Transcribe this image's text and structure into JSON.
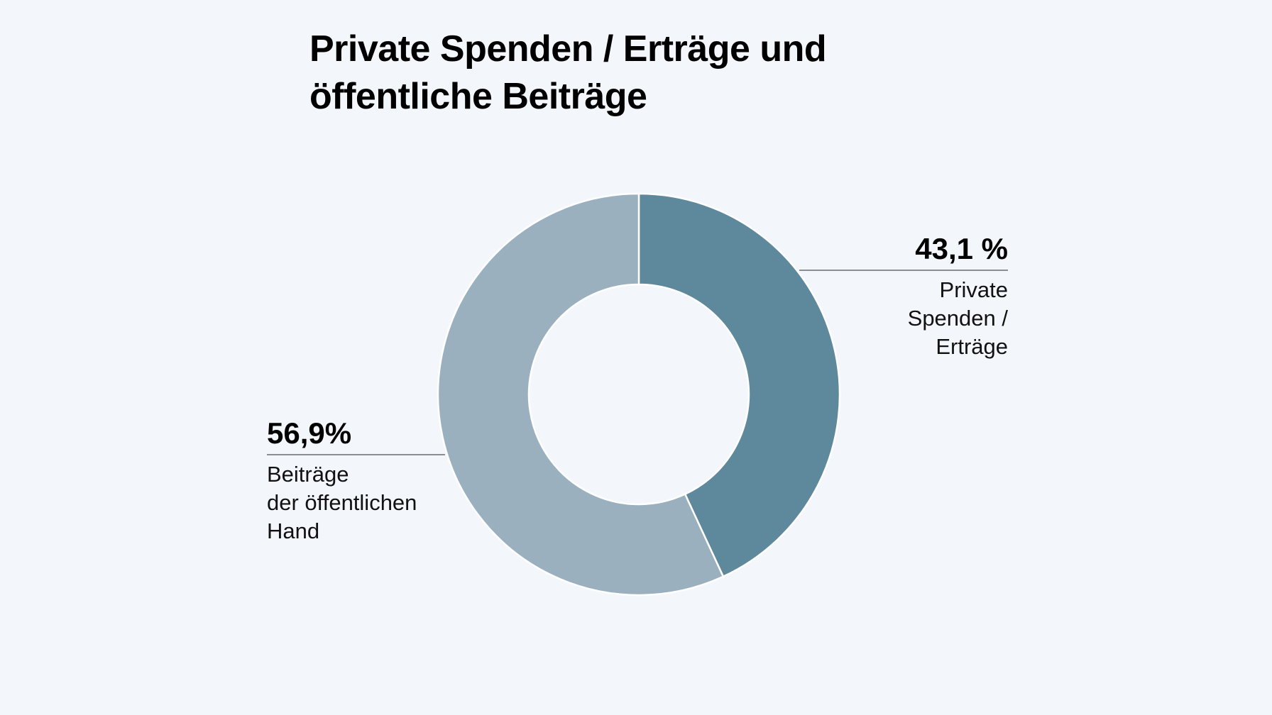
{
  "chart_data": {
    "type": "pie",
    "title": "Private Spenden / Erträge und öffentliche Beiträge",
    "title_lines": [
      "Private Spenden / Erträge und",
      "öffentliche Beiträge"
    ],
    "slices": [
      {
        "value": 43.1,
        "value_label": "43,1 %",
        "label_lines": [
          "Private",
          "Spenden /",
          "Erträge"
        ],
        "color": "#5e889b",
        "label_side": "right"
      },
      {
        "value": 56.9,
        "value_label": "56,9%",
        "label_lines": [
          "Beiträge",
          "der öffentlichen",
          "Hand"
        ],
        "color": "#9bb0bf",
        "label_side": "left"
      }
    ],
    "donut": true,
    "start_angle": "12 o'clock, clockwise",
    "legend": "none"
  },
  "colors": {
    "background": "#f3f7fc",
    "leader_line": "#8a8f93",
    "separator": "#ffffff"
  }
}
